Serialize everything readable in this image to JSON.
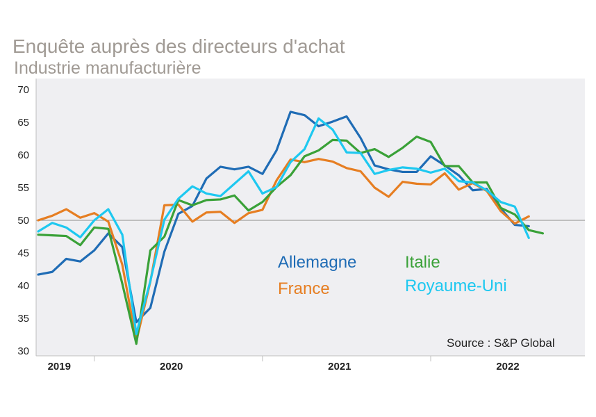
{
  "chart_data": {
    "type": "line",
    "title": "Enquête auprès des directeurs d'achat",
    "subtitle": "Industrie manufacturière",
    "source": "Source : S&P Global",
    "ylim": [
      30,
      70
    ],
    "yticks": [
      30,
      35,
      40,
      45,
      50,
      55,
      60,
      65,
      70
    ],
    "xlim": [
      0,
      39
    ],
    "xticks": [
      {
        "label": "2019",
        "x": 1.5
      },
      {
        "label": "2020",
        "x": 9.5
      },
      {
        "label": "2021",
        "x": 21.5
      },
      {
        "label": "2022",
        "x": 33.5
      }
    ],
    "xdividers": [
      4,
      16,
      28
    ],
    "reference_line": 50,
    "grid": false,
    "series": [
      {
        "name": "Allemagne",
        "color": "#1f6cb5",
        "values": [
          41.7,
          42.1,
          44.1,
          43.7,
          45.4,
          48.0,
          45.9,
          34.4,
          36.6,
          45.2,
          51.0,
          52.2,
          56.4,
          58.2,
          57.8,
          58.2,
          57.1,
          60.7,
          66.6,
          66.1,
          64.4,
          65.1,
          65.9,
          62.6,
          58.4,
          57.8,
          57.4,
          57.4,
          59.8,
          58.4,
          56.9,
          54.6,
          54.8,
          51.8,
          49.3,
          49.1
        ]
      },
      {
        "name": "France",
        "color": "#e67e22",
        "values": [
          50.0,
          50.7,
          51.7,
          50.4,
          51.1,
          49.8,
          43.2,
          31.5,
          40.6,
          52.3,
          52.4,
          49.8,
          51.2,
          51.3,
          49.6,
          51.1,
          51.6,
          56.1,
          59.3,
          58.9,
          59.4,
          59.0,
          58.0,
          57.5,
          55.0,
          53.6,
          55.9,
          55.6,
          55.5,
          57.2,
          54.7,
          55.7,
          54.5,
          51.4,
          49.5,
          50.6
        ]
      },
      {
        "name": "Italie",
        "color": "#3aa138",
        "values": [
          47.8,
          47.7,
          47.6,
          46.2,
          48.9,
          48.7,
          40.3,
          31.1,
          45.4,
          47.5,
          53.1,
          52.3,
          53.1,
          53.2,
          53.8,
          51.5,
          52.8,
          55.1,
          56.9,
          59.8,
          60.7,
          62.3,
          62.2,
          60.3,
          60.9,
          59.7,
          61.1,
          62.8,
          62.0,
          58.3,
          58.3,
          55.8,
          55.8,
          51.9,
          50.9,
          48.5,
          48.0
        ]
      },
      {
        "name": "Royaume-Uni",
        "color": "#1ec8f0",
        "values": [
          48.3,
          49.6,
          48.9,
          47.4,
          50.0,
          51.7,
          47.8,
          32.6,
          40.7,
          50.1,
          53.3,
          55.2,
          54.1,
          53.7,
          55.6,
          57.5,
          54.1,
          55.1,
          58.9,
          60.9,
          65.6,
          63.9,
          60.4,
          60.3,
          57.1,
          57.7,
          58.1,
          57.9,
          57.3,
          57.9,
          56.0,
          55.8,
          54.6,
          52.8,
          52.1,
          47.3
        ]
      }
    ],
    "legend": [
      {
        "name": "Allemagne",
        "color": "#1f6cb5"
      },
      {
        "name": "France",
        "color": "#e67e22"
      },
      {
        "name": "Italie",
        "color": "#3aa138"
      },
      {
        "name": "Royaume-Uni",
        "color": "#1ec8f0"
      }
    ],
    "legend_placement": "center"
  }
}
